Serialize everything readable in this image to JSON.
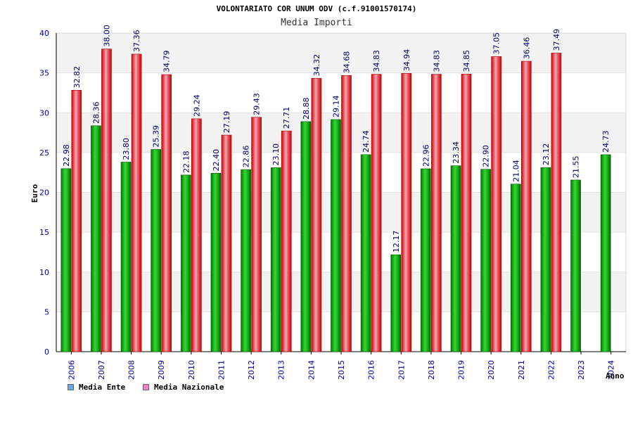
{
  "chart_data": {
    "type": "bar",
    "title": "VOLONTARIATO COR UNUM ODV (c.f.91001570174)",
    "subtitle": "Media Importi",
    "ylabel": "Euro",
    "xlabel": "Anno",
    "ylim": [
      0,
      40
    ],
    "yticks": [
      0,
      5,
      10,
      15,
      20,
      25,
      30,
      35,
      40
    ],
    "categories": [
      "2006",
      "2007",
      "2008",
      "2009",
      "2010",
      "2011",
      "2012",
      "2013",
      "2014",
      "2015",
      "2016",
      "2017",
      "2018",
      "2019",
      "2020",
      "2021",
      "2022",
      "2023",
      "2024"
    ],
    "series": [
      {
        "name": "Media Ente",
        "legend_color": "#6aaae8",
        "labels": [
          "22.98",
          "28.36",
          "23.80",
          "25.39",
          "22.18",
          "22.40",
          "22.86",
          "23.10",
          "28.88",
          "29.14",
          "24.74",
          "12.17",
          "22.96",
          "23.34",
          "22.90",
          "21.04",
          "23.12",
          "21.55",
          "24.73"
        ],
        "values": [
          22.98,
          28.36,
          23.8,
          25.39,
          22.18,
          22.4,
          22.86,
          23.1,
          28.88,
          29.14,
          24.74,
          12.17,
          22.96,
          23.34,
          22.9,
          21.04,
          23.12,
          21.55,
          24.73
        ]
      },
      {
        "name": "Media Nazionale",
        "legend_color": "#e88ac0",
        "labels": [
          "32.82",
          "38.00",
          "37.36",
          "34.79",
          "29.24",
          "27.19",
          "29.43",
          "27.71",
          "34.32",
          "34.68",
          "34.83",
          "34.94",
          "34.83",
          "34.85",
          "37.05",
          "36.46",
          "37.49",
          null,
          null
        ],
        "values": [
          32.82,
          38.0,
          37.36,
          34.79,
          29.24,
          27.19,
          29.43,
          27.71,
          34.32,
          34.68,
          34.83,
          34.94,
          34.83,
          34.85,
          37.05,
          36.46,
          37.49,
          null,
          null
        ]
      }
    ]
  }
}
